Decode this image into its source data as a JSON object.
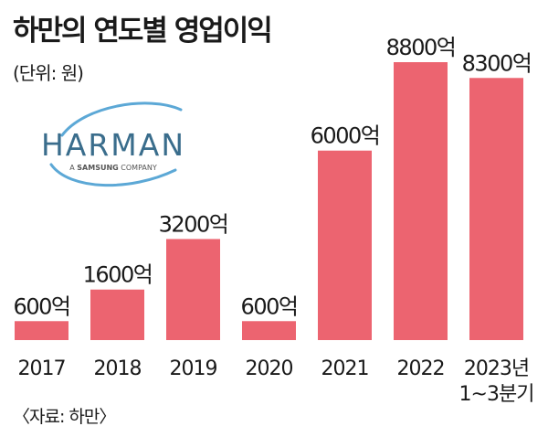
{
  "header": {
    "title": "하만의 연도별 영업이익",
    "unit": "(단위: 원)"
  },
  "logo": {
    "brand": "HARMAN",
    "tagline_prefix": "A",
    "tagline_brand": "SAMSUNG",
    "tagline_suffix": "COMPANY",
    "brand_color": "#3a6d8c",
    "swoosh_color": "#5ca8d6"
  },
  "footer": {
    "source": "〈자료: 하만〉"
  },
  "colors": {
    "bar": "#ec6470",
    "text": "#1a1a1a"
  },
  "chart_data": {
    "type": "bar",
    "title": "하만의 연도별 영업이익",
    "ylabel": "",
    "xlabel": "",
    "ylim": [
      0,
      8800
    ],
    "categories": [
      [
        "2017"
      ],
      [
        "2018"
      ],
      [
        "2019"
      ],
      [
        "2020"
      ],
      [
        "2021"
      ],
      [
        "2022"
      ],
      [
        "2023년",
        "1~3분기"
      ]
    ],
    "values": [
      600,
      1600,
      3200,
      600,
      6000,
      8800,
      8300
    ],
    "value_labels": [
      "600억",
      "1600억",
      "3200억",
      "600억",
      "6000억",
      "8800억",
      "8300억"
    ]
  }
}
